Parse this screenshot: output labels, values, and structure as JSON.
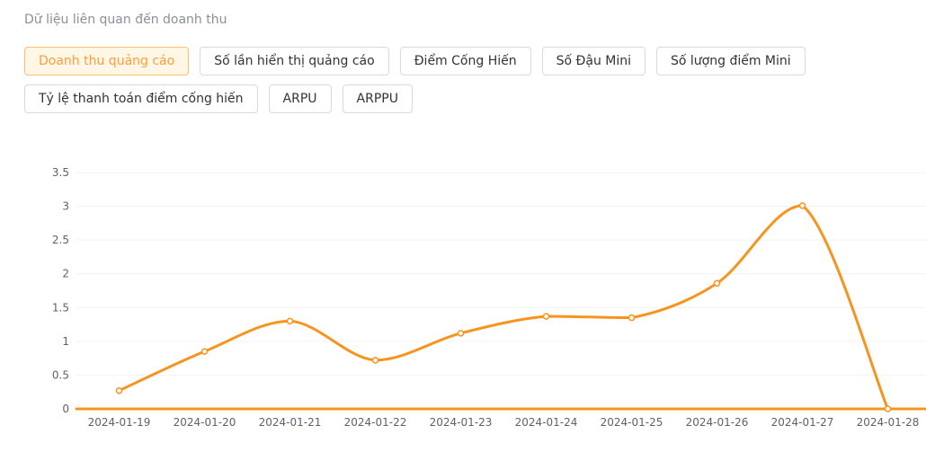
{
  "header": {
    "title": "Dữ liệu liên quan đến doanh thu"
  },
  "tabs": [
    {
      "label": "Doanh thu quảng cáo",
      "active": true
    },
    {
      "label": "Số lần hiển thị quảng cáo",
      "active": false
    },
    {
      "label": "Điểm Cống Hiến",
      "active": false
    },
    {
      "label": "Số Đậu Mini",
      "active": false
    },
    {
      "label": "Số lượng điểm Mini",
      "active": false
    },
    {
      "label": "Tỷ lệ thanh toán điểm cống hiến",
      "active": false
    },
    {
      "label": "ARPU",
      "active": false
    },
    {
      "label": "ARPPU",
      "active": false
    }
  ],
  "colors": {
    "accent_line": "#f7941e",
    "axis_line": "#f7941e",
    "grid_line": "#f2f2f2",
    "axis_label": "#5e6266",
    "title_text": "#8a9099",
    "tab_text": "#333333",
    "tab_border": "#d9d9d9",
    "active_tab_bg": "#fff7e6",
    "active_tab_border": "#ffc069",
    "active_tab_text": "#ff9c40"
  },
  "chart_data": {
    "type": "line",
    "title": "",
    "series_name": "Doanh thu quảng cáo",
    "categories": [
      "2024-01-19",
      "2024-01-20",
      "2024-01-21",
      "2024-01-22",
      "2024-01-23",
      "2024-01-24",
      "2024-01-25",
      "2024-01-26",
      "2024-01-27",
      "2024-01-28"
    ],
    "values": [
      0.27,
      0.85,
      1.3,
      0.72,
      1.12,
      1.37,
      1.35,
      1.86,
      3.01,
      0
    ],
    "xlabel": "",
    "ylabel": "",
    "ylim": [
      0,
      3.5
    ],
    "y_tick_labels": [
      "0",
      "0.5",
      "1",
      "1.5",
      "2",
      "2.5",
      "3",
      "3.5"
    ],
    "smooth": true,
    "grid": true,
    "legend_position": "none",
    "marker": "hollow-circle"
  }
}
